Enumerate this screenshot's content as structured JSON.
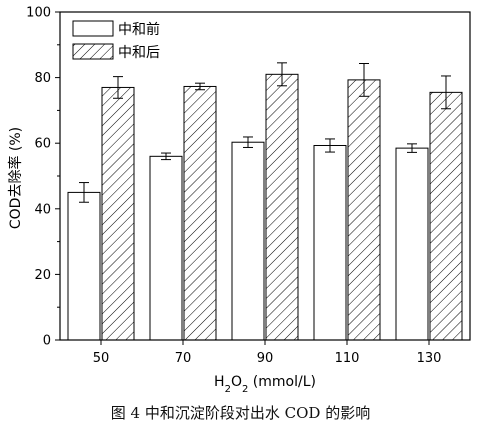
{
  "chart_data": {
    "type": "bar",
    "categories": [
      "50",
      "70",
      "90",
      "110",
      "130"
    ],
    "series": [
      {
        "name": "中和前",
        "values": [
          45,
          56,
          60.3,
          59.3,
          58.5
        ],
        "errors": [
          3.0,
          1.0,
          1.6,
          2.0,
          1.3
        ],
        "fill": "solid-white"
      },
      {
        "name": "中和后",
        "values": [
          77,
          77.3,
          81,
          79.3,
          75.5
        ],
        "errors": [
          3.3,
          1.0,
          3.5,
          5.0,
          5.0
        ],
        "fill": "hatch"
      }
    ],
    "xlabel": "H2O2 (mmol/L)",
    "ylabel": "COD去除率 (%)",
    "ylim": [
      0,
      100
    ],
    "yticks": [
      0,
      20,
      40,
      60,
      80,
      100
    ],
    "grid": false,
    "legend_position": "top-left"
  },
  "caption": "图 4  中和沉淀阶段对出水 COD 的影响",
  "xlabel_parts": {
    "base": "H",
    "sub1": "2",
    "mid": "O",
    "sub2": "2",
    "rest": " (mmol/L)"
  }
}
